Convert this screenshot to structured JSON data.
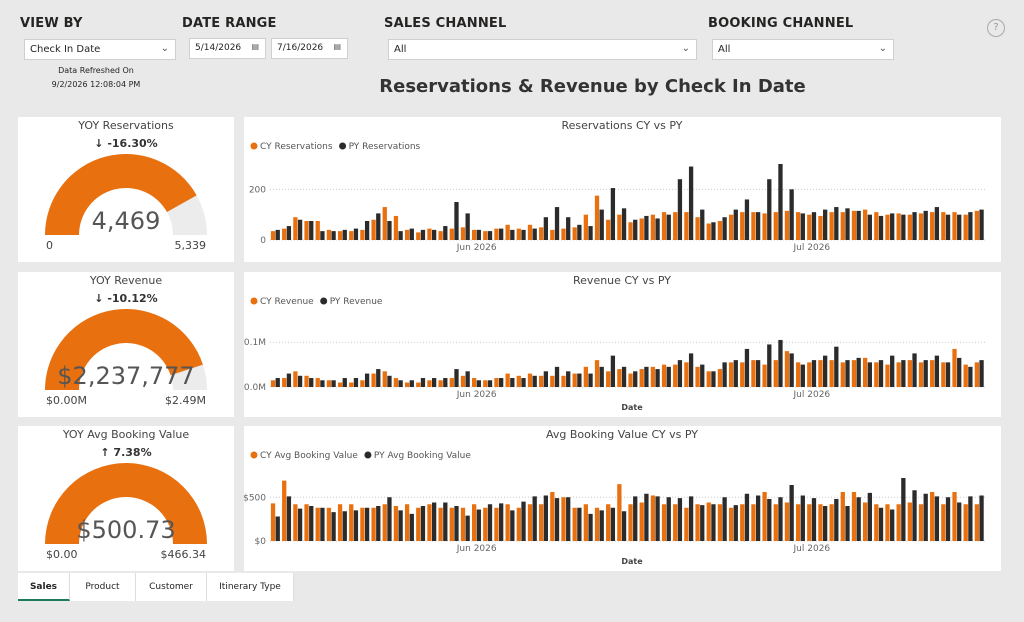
{
  "filters": {
    "view_by": {
      "label": "VIEW BY",
      "value": "Check In Date"
    },
    "date_range": {
      "label": "DATE RANGE",
      "start": "5/14/2026",
      "end": "7/16/2026"
    },
    "sales_channel": {
      "label": "SALES CHANNEL",
      "value": "All"
    },
    "booking_channel": {
      "label": "BOOKING CHANNEL",
      "value": "All"
    }
  },
  "refresh": {
    "label": "Data Refreshed On",
    "timestamp": "9/2/2026 12:08:04 PM"
  },
  "help": "?",
  "page_title": "Reservations & Revenue by Check In Date",
  "tabs": [
    "Sales",
    "Product",
    "Customer",
    "Itinerary Type"
  ],
  "chart_data": [
    {
      "type": "gauge",
      "title": "YOY Reservations",
      "change": "↓ -16.30%",
      "value": 4469,
      "value_label": "4,469",
      "ylim": [
        0,
        5339
      ],
      "yticks": [
        0,
        {
          "value": 5339,
          "label": "5,339"
        }
      ],
      "color": "#e8700f"
    },
    {
      "type": "gauge",
      "title": "YOY Revenue",
      "change": "↓ -10.12%",
      "value": 2237777,
      "value_label": "$2,237,777",
      "ylim": [
        0,
        2490000
      ],
      "yticks": [
        {
          "value": 0,
          "label": "$0.00M"
        },
        {
          "value": 2490000,
          "label": "$2.49M"
        }
      ],
      "color": "#e8700f"
    },
    {
      "type": "gauge",
      "title": "YOY Avg Booking Value",
      "change": "↑ 7.38%",
      "value": 500.73,
      "value_label": "$500.73",
      "ylim": [
        0,
        466.34
      ],
      "yticks": [
        {
          "value": 0,
          "label": "$0.00"
        },
        {
          "value": 466.34,
          "label": "$466.34"
        }
      ],
      "color": "#e8700f"
    },
    {
      "type": "bar",
      "title": "Reservations CY vs PY",
      "categories": [
        null,
        null,
        null,
        null,
        null,
        null,
        null,
        null,
        null,
        null,
        null,
        null,
        null,
        null,
        null,
        null,
        null,
        null,
        "Jun 2026",
        null,
        null,
        null,
        null,
        null,
        null,
        null,
        null,
        null,
        null,
        null,
        null,
        null,
        null,
        null,
        null,
        null,
        null,
        null,
        null,
        null,
        null,
        null,
        null,
        null,
        null,
        null,
        null,
        null,
        "Jul 2026",
        null,
        null,
        null,
        null,
        null,
        null,
        null,
        null,
        null,
        null,
        null,
        null,
        null,
        null,
        null
      ],
      "series": [
        {
          "name": "CY Reservations",
          "color": "#e8700f",
          "values": [
            35,
            45,
            90,
            75,
            75,
            40,
            35,
            35,
            40,
            80,
            130,
            95,
            40,
            30,
            45,
            35,
            45,
            50,
            40,
            35,
            45,
            60,
            45,
            60,
            50,
            40,
            45,
            50,
            100,
            175,
            80,
            100,
            70,
            85,
            100,
            110,
            110,
            110,
            90,
            65,
            75,
            100,
            110,
            110,
            105,
            110,
            115,
            110,
            100,
            95,
            110,
            110,
            115,
            120,
            110,
            100,
            105,
            100,
            105,
            110,
            110,
            110,
            100,
            115
          ]
        },
        {
          "name": "PY Reservations",
          "color": "#2b2b2b",
          "values": [
            40,
            55,
            80,
            75,
            35,
            35,
            40,
            45,
            75,
            105,
            75,
            35,
            45,
            40,
            40,
            55,
            150,
            105,
            40,
            35,
            45,
            40,
            40,
            45,
            90,
            130,
            90,
            60,
            55,
            120,
            205,
            125,
            80,
            95,
            85,
            100,
            240,
            290,
            120,
            70,
            90,
            120,
            160,
            110,
            240,
            300,
            200,
            105,
            110,
            120,
            130,
            125,
            115,
            100,
            95,
            105,
            100,
            110,
            115,
            130,
            100,
            100,
            110,
            120
          ]
        }
      ],
      "ylim": [
        0,
        300
      ],
      "yticks": [
        0,
        200
      ],
      "grid": true
    },
    {
      "type": "bar",
      "title": "Revenue CY vs PY",
      "x_label": "Date",
      "categories": [
        null,
        null,
        null,
        null,
        null,
        null,
        null,
        null,
        null,
        null,
        null,
        null,
        null,
        null,
        null,
        null,
        null,
        null,
        "Jun 2026",
        null,
        null,
        null,
        null,
        null,
        null,
        null,
        null,
        null,
        null,
        null,
        null,
        null,
        null,
        null,
        null,
        null,
        null,
        null,
        null,
        null,
        null,
        null,
        null,
        null,
        null,
        null,
        null,
        null,
        "Jul 2026",
        null,
        null,
        null,
        null,
        null,
        null,
        null,
        null,
        null,
        null,
        null,
        null,
        null,
        null,
        null
      ],
      "series": [
        {
          "name": "CY Revenue",
          "color": "#e8700f",
          "values": [
            15000,
            20000,
            35000,
            25000,
            20000,
            15000,
            10000,
            10000,
            15000,
            30000,
            35000,
            20000,
            10000,
            10000,
            15000,
            15000,
            20000,
            25000,
            20000,
            15000,
            20000,
            30000,
            25000,
            30000,
            25000,
            25000,
            25000,
            30000,
            45000,
            60000,
            35000,
            40000,
            30000,
            40000,
            45000,
            50000,
            50000,
            55000,
            45000,
            35000,
            40000,
            55000,
            55000,
            60000,
            50000,
            60000,
            80000,
            55000,
            55000,
            60000,
            60000,
            55000,
            60000,
            65000,
            55000,
            50000,
            55000,
            60000,
            55000,
            60000,
            55000,
            85000,
            50000,
            55000
          ]
        },
        {
          "name": "PY Revenue",
          "color": "#2b2b2b",
          "values": [
            20000,
            30000,
            25000,
            20000,
            15000,
            15000,
            20000,
            20000,
            30000,
            40000,
            25000,
            15000,
            15000,
            20000,
            20000,
            20000,
            40000,
            35000,
            15000,
            15000,
            20000,
            20000,
            20000,
            25000,
            35000,
            45000,
            35000,
            30000,
            30000,
            45000,
            70000,
            45000,
            35000,
            45000,
            40000,
            45000,
            60000,
            75000,
            50000,
            35000,
            55000,
            60000,
            85000,
            60000,
            95000,
            105000,
            75000,
            50000,
            60000,
            70000,
            90000,
            60000,
            65000,
            55000,
            60000,
            70000,
            60000,
            75000,
            60000,
            70000,
            55000,
            65000,
            45000,
            60000
          ]
        }
      ],
      "ylim": [
        0,
        125000
      ],
      "yticks": [
        {
          "value": 0,
          "label": "$0.0M"
        },
        {
          "value": 100000,
          "label": "$0.1M"
        }
      ],
      "grid": true
    },
    {
      "type": "bar",
      "title": "Avg Booking Value CY vs PY",
      "x_label": "Date",
      "categories": [
        null,
        null,
        null,
        null,
        null,
        null,
        null,
        null,
        null,
        null,
        null,
        null,
        null,
        null,
        null,
        null,
        null,
        null,
        "Jun 2026",
        null,
        null,
        null,
        null,
        null,
        null,
        null,
        null,
        null,
        null,
        null,
        null,
        null,
        null,
        null,
        null,
        null,
        null,
        null,
        null,
        null,
        null,
        null,
        null,
        null,
        null,
        null,
        null,
        null,
        "Jul 2026",
        null,
        null,
        null,
        null,
        null,
        null,
        null,
        null,
        null,
        null,
        null,
        null,
        null,
        null,
        null
      ],
      "series": [
        {
          "name": "CY Avg Booking Value",
          "color": "#e8700f",
          "values": [
            430,
            690,
            420,
            420,
            380,
            380,
            420,
            420,
            380,
            380,
            420,
            400,
            420,
            380,
            420,
            380,
            380,
            380,
            420,
            380,
            380,
            420,
            380,
            420,
            420,
            560,
            500,
            380,
            420,
            380,
            420,
            650,
            420,
            440,
            520,
            420,
            420,
            380,
            420,
            440,
            420,
            380,
            420,
            420,
            560,
            420,
            440,
            420,
            420,
            420,
            420,
            560,
            560,
            440,
            420,
            420,
            420,
            440,
            420,
            560,
            420,
            560,
            420,
            420
          ]
        },
        {
          "name": "PY Avg Booking Value",
          "color": "#2b2b2b",
          "values": [
            280,
            510,
            370,
            400,
            380,
            330,
            340,
            350,
            380,
            400,
            500,
            350,
            310,
            400,
            440,
            440,
            400,
            290,
            360,
            420,
            430,
            350,
            450,
            510,
            520,
            490,
            500,
            380,
            310,
            350,
            380,
            340,
            510,
            540,
            510,
            500,
            490,
            510,
            410,
            420,
            500,
            410,
            540,
            520,
            480,
            500,
            640,
            520,
            490,
            400,
            480,
            400,
            500,
            550,
            380,
            360,
            720,
            580,
            540,
            510,
            500,
            440,
            510,
            520
          ]
        }
      ],
      "ylim": [
        0,
        800
      ],
      "yticks": [
        {
          "value": 0,
          "label": "$0"
        },
        {
          "value": 500,
          "label": "$500"
        }
      ],
      "grid": true
    }
  ]
}
